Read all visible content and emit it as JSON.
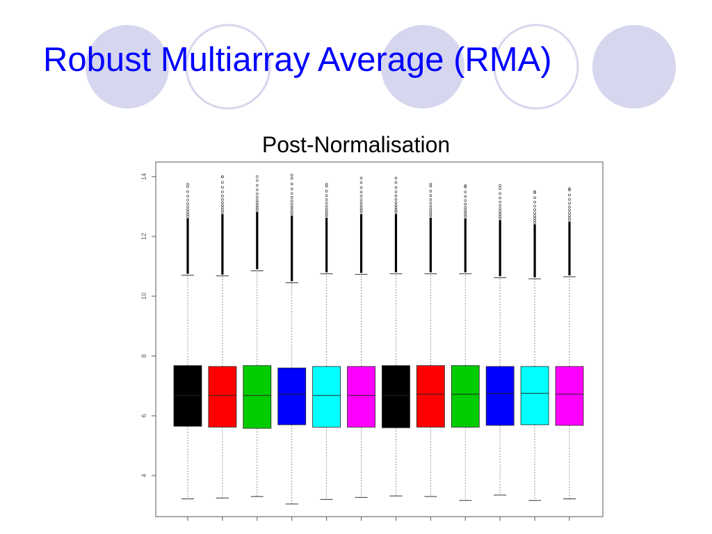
{
  "slide": {
    "title": "Robust Multiarray Average (RMA)"
  },
  "colors": {
    "title": "#0000ff",
    "circle_fill": "#d6d6ee",
    "circle_stroke": "#d6d6ee"
  },
  "chart_data": {
    "type": "box",
    "title": "Post-Normalisation",
    "xlabel": "",
    "ylabel": "",
    "ylim": [
      3.0,
      14.2
    ],
    "yticks": [
      4,
      6,
      8,
      10,
      12,
      14
    ],
    "ytick_labels": [
      "4",
      "6",
      "8",
      "10",
      "12",
      "14"
    ],
    "grid": false,
    "series": [
      {
        "color": "#000000",
        "whisker_low": 3.22,
        "q1": 5.65,
        "median": 6.68,
        "q3": 7.68,
        "whisker_high": 10.7,
        "outlier_start": 10.75,
        "outlier_max": 13.75
      },
      {
        "color": "#ff0000",
        "whisker_low": 3.25,
        "q1": 5.62,
        "median": 6.68,
        "q3": 7.65,
        "whisker_high": 10.68,
        "outlier_start": 10.72,
        "outlier_max": 14.0
      },
      {
        "color": "#00cc00",
        "whisker_low": 3.3,
        "q1": 5.58,
        "median": 6.68,
        "q3": 7.68,
        "whisker_high": 10.85,
        "outlier_start": 10.9,
        "outlier_max": 14.0
      },
      {
        "color": "#0000ff",
        "whisker_low": 3.05,
        "q1": 5.7,
        "median": 6.72,
        "q3": 7.6,
        "whisker_high": 10.45,
        "outlier_start": 10.5,
        "outlier_max": 14.05
      },
      {
        "color": "#00ffff",
        "whisker_low": 3.2,
        "q1": 5.62,
        "median": 6.68,
        "q3": 7.65,
        "whisker_high": 10.75,
        "outlier_start": 10.8,
        "outlier_max": 13.75
      },
      {
        "color": "#ff00ff",
        "whisker_low": 3.27,
        "q1": 5.62,
        "median": 6.68,
        "q3": 7.65,
        "whisker_high": 10.73,
        "outlier_start": 10.78,
        "outlier_max": 13.95
      },
      {
        "color": "#000000",
        "whisker_low": 3.32,
        "q1": 5.6,
        "median": 6.68,
        "q3": 7.68,
        "whisker_high": 10.75,
        "outlier_start": 10.8,
        "outlier_max": 13.95
      },
      {
        "color": "#ff0000",
        "whisker_low": 3.3,
        "q1": 5.62,
        "median": 6.72,
        "q3": 7.68,
        "whisker_high": 10.75,
        "outlier_start": 10.8,
        "outlier_max": 13.75
      },
      {
        "color": "#00cc00",
        "whisker_low": 3.17,
        "q1": 5.62,
        "median": 6.72,
        "q3": 7.68,
        "whisker_high": 10.75,
        "outlier_start": 10.8,
        "outlier_max": 13.7
      },
      {
        "color": "#0000ff",
        "whisker_low": 3.35,
        "q1": 5.68,
        "median": 6.75,
        "q3": 7.65,
        "whisker_high": 10.62,
        "outlier_start": 10.67,
        "outlier_max": 13.7
      },
      {
        "color": "#00ffff",
        "whisker_low": 3.17,
        "q1": 5.7,
        "median": 6.75,
        "q3": 7.65,
        "whisker_high": 10.58,
        "outlier_start": 10.63,
        "outlier_max": 13.5
      },
      {
        "color": "#ff00ff",
        "whisker_low": 3.22,
        "q1": 5.68,
        "median": 6.72,
        "q3": 7.65,
        "whisker_high": 10.65,
        "outlier_start": 10.7,
        "outlier_max": 13.6
      }
    ]
  }
}
